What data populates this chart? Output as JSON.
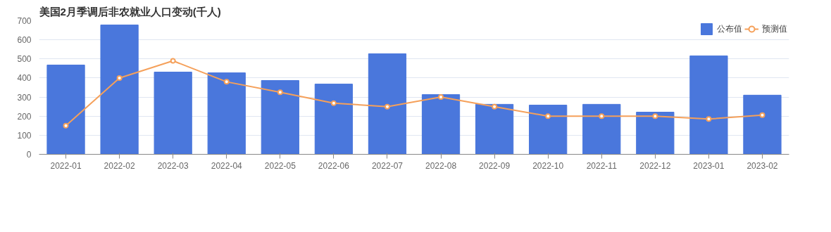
{
  "chart_data": {
    "type": "bar",
    "title": "美国2月季调后非农就业人口变动(千人)",
    "categories": [
      "2022-01",
      "2022-02",
      "2022-03",
      "2022-04",
      "2022-05",
      "2022-06",
      "2022-07",
      "2022-08",
      "2022-09",
      "2022-10",
      "2022-11",
      "2022-12",
      "2023-01",
      "2023-02"
    ],
    "series": [
      {
        "name": "公布值",
        "color": "#4a77dc",
        "values": [
          468,
          678,
          431,
          427,
          387,
          368,
          527,
          313,
          262,
          258,
          262,
          221,
          516,
          310
        ]
      },
      {
        "name": "预测值",
        "type": "line",
        "color": "#f5a05a",
        "marker": "circle",
        "values": [
          150,
          400,
          490,
          380,
          325,
          268,
          250,
          300,
          250,
          200,
          200,
          200,
          185,
          205
        ]
      }
    ],
    "ylim": [
      0,
      700
    ],
    "yticks": [
      0,
      100,
      200,
      300,
      400,
      500,
      600,
      700
    ],
    "grid": "y",
    "legend": "top right"
  }
}
